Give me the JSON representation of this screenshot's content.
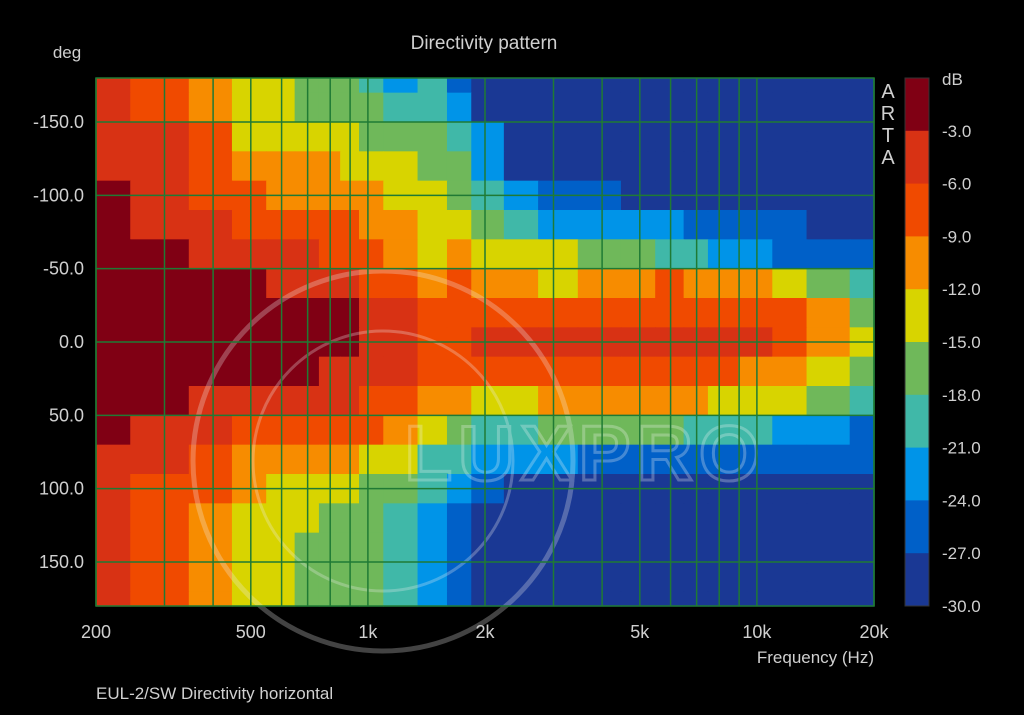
{
  "chart_data": {
    "type": "heatmap",
    "title": "Directivity pattern",
    "xlabel": "Frequency (Hz)",
    "ylabel": "deg",
    "xscale": "log",
    "xlim": [
      200,
      20000
    ],
    "ylim": [
      -180,
      180
    ],
    "y_inverted": true,
    "x_tick_labels": [
      {
        "value": 200,
        "label": "200"
      },
      {
        "value": 500,
        "label": "500"
      },
      {
        "value": 1000,
        "label": "1k"
      },
      {
        "value": 2000,
        "label": "2k"
      },
      {
        "value": 5000,
        "label": "5k"
      },
      {
        "value": 10000,
        "label": "10k"
      },
      {
        "value": 20000,
        "label": "20k"
      }
    ],
    "x_gridlines": [
      200,
      300,
      400,
      500,
      600,
      700,
      800,
      900,
      1000,
      2000,
      3000,
      4000,
      5000,
      6000,
      7000,
      8000,
      9000,
      10000,
      20000
    ],
    "y_tick_labels": [
      {
        "value": -150,
        "label": "-150.0"
      },
      {
        "value": -100,
        "label": "-100.0"
      },
      {
        "value": -50,
        "label": "-50.0"
      },
      {
        "value": 0,
        "label": "0.0"
      },
      {
        "value": 50,
        "label": "50.0"
      },
      {
        "value": 100,
        "label": "100.0"
      },
      {
        "value": 150,
        "label": "150.0"
      }
    ],
    "grid": true,
    "grid_color": "#1f7a34",
    "colorbar": {
      "unit": "dB",
      "range": [
        -30,
        0
      ],
      "tick_labels": [
        "-3.0",
        "-6.0",
        "-9.0",
        "-12.0",
        "-15.0",
        "-18.0",
        "-21.0",
        "-24.0",
        "-27.0",
        "-30.0"
      ],
      "colors": [
        "#800014",
        "#d83214",
        "#f04a00",
        "#f78c00",
        "#d8d400",
        "#6fb85a",
        "#40b8a8",
        "#0094e8",
        "#0060c8",
        "#1a3894"
      ]
    },
    "frequencies": [
      200,
      300,
      400,
      500,
      600,
      700,
      800,
      900,
      1000,
      1200,
      1500,
      1700,
      2000,
      2500,
      3000,
      4000,
      5000,
      6000,
      7000,
      8000,
      10000,
      12000,
      15000,
      20000
    ],
    "angles": [
      -180,
      -160,
      -140,
      -120,
      -100,
      -80,
      -60,
      -40,
      -20,
      0,
      20,
      40,
      60,
      80,
      100,
      120,
      140,
      160,
      180
    ],
    "level_db": [
      [
        -5,
        -7,
        -11,
        -13,
        -14,
        -15,
        -16,
        -16,
        -18,
        -22,
        -20,
        -24,
        -29,
        -30,
        -30,
        -30,
        -30,
        -30,
        -30,
        -30,
        -30,
        -30,
        -30,
        -30
      ],
      [
        -4,
        -6,
        -10,
        -13,
        -14,
        -15,
        -15,
        -16,
        -17,
        -19,
        -18,
        -22,
        -27,
        -30,
        -30,
        -30,
        -30,
        -30,
        -30,
        -30,
        -30,
        -30,
        -30,
        -30
      ],
      [
        -4,
        -5,
        -8,
        -12,
        -13,
        -12,
        -13,
        -14,
        -15,
        -17,
        -16,
        -18,
        -23,
        -30,
        -30,
        -30,
        -30,
        -30,
        -30,
        -30,
        -30,
        -30,
        -30,
        -30
      ],
      [
        -4,
        -5,
        -7,
        -11,
        -11,
        -10,
        -11,
        -12,
        -12,
        -14,
        -15,
        -17,
        -21,
        -27,
        -29,
        -30,
        -30,
        -30,
        -30,
        -30,
        -30,
        -30,
        -30,
        -30
      ],
      [
        -2,
        -4,
        -6,
        -8,
        -9,
        -9,
        -10,
        -10,
        -10,
        -12,
        -14,
        -16,
        -19,
        -23,
        -24,
        -25,
        -27,
        -28,
        -28,
        -29,
        -30,
        -30,
        -30,
        -30
      ],
      [
        -2,
        -3,
        -4,
        -6,
        -7,
        -7,
        -8,
        -8,
        -9,
        -11,
        -13,
        -14,
        -17,
        -20,
        -22,
        -22,
        -23,
        -23,
        -24,
        -25,
        -26,
        -26,
        -27,
        -28
      ],
      [
        -2,
        -2,
        -3,
        -4,
        -5,
        -5,
        -6,
        -7,
        -8,
        -9,
        -12,
        -11,
        -12,
        -13,
        -14,
        -16,
        -17,
        -18,
        -20,
        -21,
        -23,
        -24,
        -25,
        -25
      ],
      [
        -2,
        -2,
        -2,
        -2,
        -3,
        -3,
        -4,
        -5,
        -6,
        -8,
        -9,
        -8,
        -10,
        -11,
        -12,
        -11,
        -9,
        -8,
        -9,
        -10,
        -11,
        -13,
        -15,
        -18
      ],
      [
        -2,
        -2,
        -2,
        -2,
        -2,
        -2,
        -2,
        -2,
        -3,
        -5,
        -7,
        -7,
        -8,
        -8,
        -7,
        -6,
        -6,
        -6,
        -6,
        -6,
        -7,
        -8,
        -11,
        -15
      ],
      [
        -2,
        -2,
        -2,
        -2,
        -2,
        -2,
        -2,
        -2,
        -3,
        -4,
        -6,
        -6,
        -5,
        -5,
        -4,
        -3,
        -4,
        -4,
        -5,
        -5,
        -5,
        -6,
        -9,
        -14
      ],
      [
        -2,
        -2,
        -2,
        -2,
        -2,
        -2,
        -3,
        -3,
        -4,
        -5,
        -6,
        -7,
        -8,
        -8,
        -7,
        -7,
        -7,
        -7,
        -8,
        -8,
        -9,
        -10,
        -13,
        -16
      ],
      [
        -2,
        -2,
        -3,
        -4,
        -5,
        -5,
        -5,
        -5,
        -6,
        -7,
        -9,
        -10,
        -13,
        -12,
        -11,
        -10,
        -10,
        -10,
        -11,
        -12,
        -13,
        -14,
        -17,
        -20
      ],
      [
        -2,
        -3,
        -5,
        -6,
        -7,
        -7,
        -7,
        -7,
        -8,
        -10,
        -13,
        -16,
        -20,
        -18,
        -16,
        -15,
        -16,
        -17,
        -18,
        -19,
        -20,
        -21,
        -22,
        -24
      ],
      [
        -3,
        -4,
        -7,
        -9,
        -10,
        -11,
        -11,
        -10,
        -12,
        -14,
        -18,
        -20,
        -23,
        -22,
        -22,
        -24,
        -24,
        -25,
        -25,
        -26,
        -26,
        -26,
        -25,
        -25
      ],
      [
        -4,
        -6,
        -8,
        -11,
        -13,
        -13,
        -13,
        -13,
        -15,
        -17,
        -20,
        -23,
        -26,
        -27,
        -28,
        -29,
        -30,
        -30,
        -30,
        -30,
        -30,
        -30,
        -30,
        -30
      ],
      [
        -5,
        -7,
        -9,
        -12,
        -14,
        -14,
        -15,
        -15,
        -16,
        -19,
        -22,
        -25,
        -28,
        -30,
        -30,
        -30,
        -30,
        -30,
        -30,
        -30,
        -30,
        -30,
        -30,
        -30
      ],
      [
        -5,
        -8,
        -11,
        -13,
        -14,
        -15,
        -15,
        -16,
        -17,
        -19,
        -22,
        -26,
        -29,
        -30,
        -30,
        -30,
        -30,
        -30,
        -30,
        -30,
        -30,
        -30,
        -30,
        -30
      ],
      [
        -5,
        -8,
        -11,
        -13,
        -14,
        -15,
        -15,
        -16,
        -17,
        -19,
        -22,
        -26,
        -29,
        -30,
        -30,
        -30,
        -30,
        -30,
        -30,
        -30,
        -30,
        -30,
        -30,
        -30
      ],
      [
        -5,
        -8,
        -11,
        -13,
        -14,
        -15,
        -15,
        -16,
        -17,
        -19,
        -22,
        -26,
        -29,
        -30,
        -30,
        -30,
        -30,
        -30,
        -30,
        -30,
        -30,
        -30,
        -30,
        -30
      ]
    ],
    "side_label": "ARTA",
    "caption": "EUL-2/SW  Directivity horizontal",
    "watermark": "LUXPRO"
  }
}
